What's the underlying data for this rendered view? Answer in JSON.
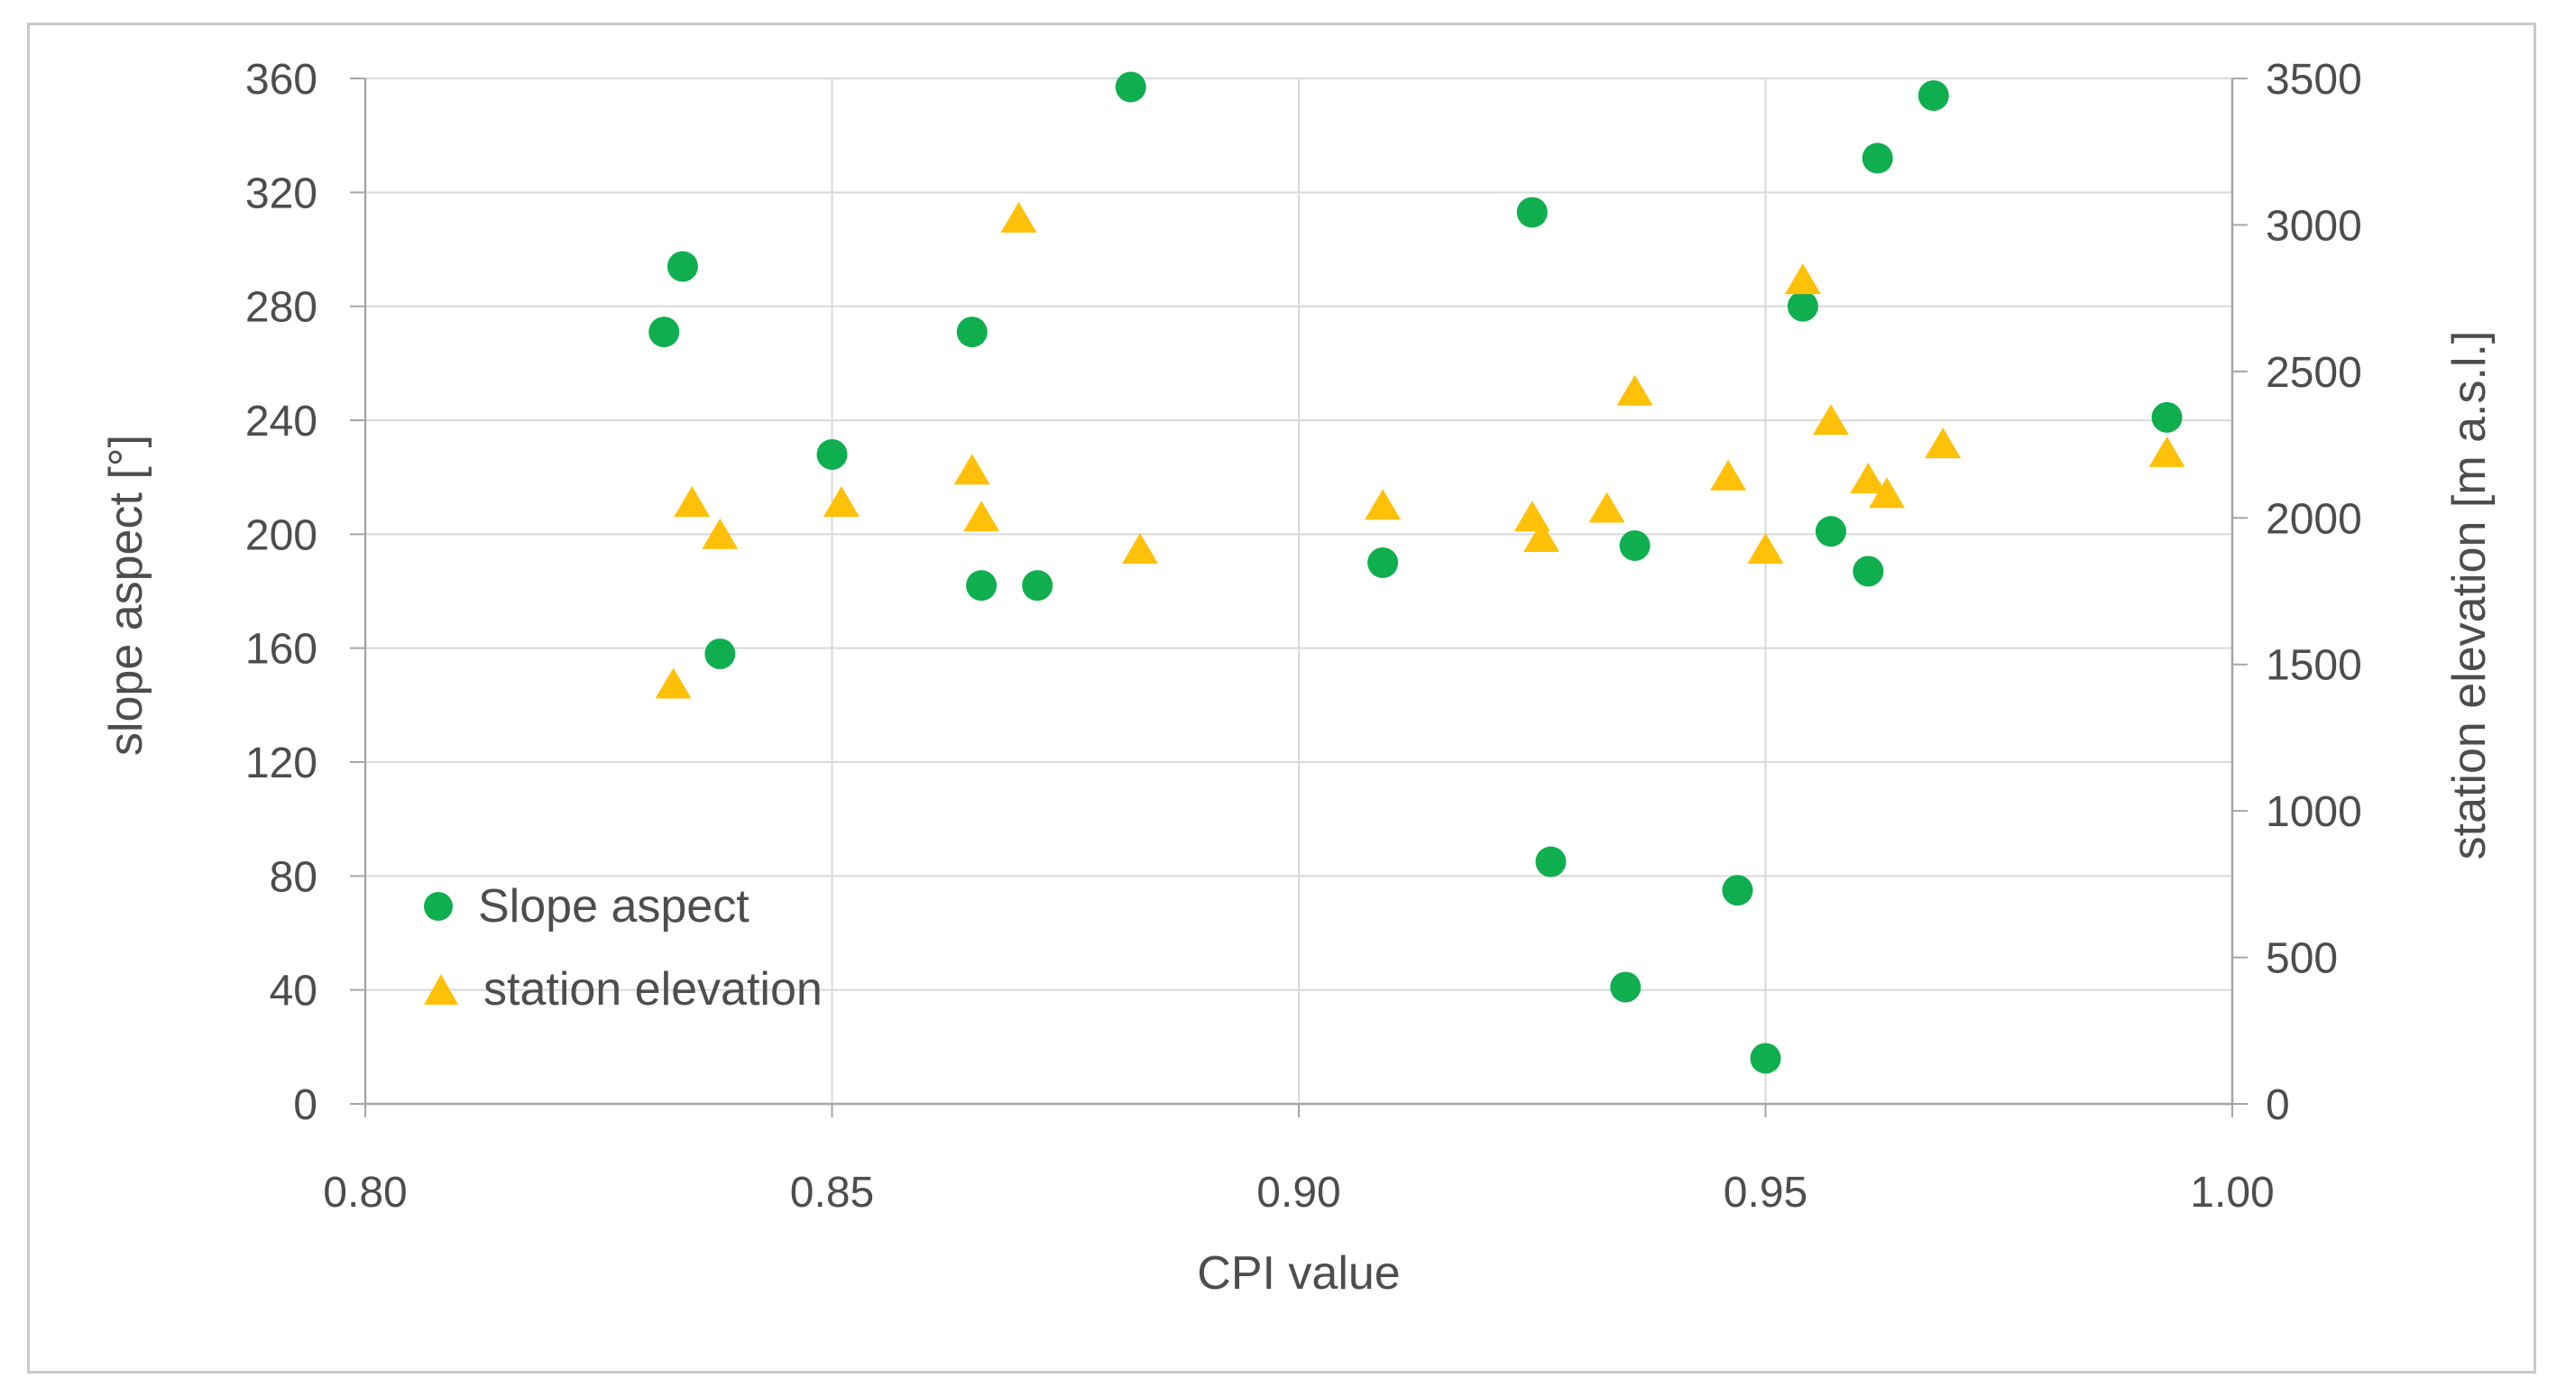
{
  "figure": {
    "background": "#ffffff",
    "border_color": "#c9c9c9"
  },
  "colors": {
    "green_series": "#0fae4e",
    "yellow_series": "#ffc008",
    "gridline": "#d9d9d9",
    "axis_line": "#a6a6a6",
    "text": "#4d4d4d"
  },
  "chart_data": {
    "type": "scatter",
    "title": "",
    "xlabel": "CPI value",
    "xlim": [
      0.8,
      1.0
    ],
    "x_ticks": [
      {
        "v": 0.8,
        "label": "0.80"
      },
      {
        "v": 0.85,
        "label": "0.85"
      },
      {
        "v": 0.9,
        "label": "0.90"
      },
      {
        "v": 0.95,
        "label": "0.95"
      },
      {
        "v": 1.0,
        "label": "1.00"
      }
    ],
    "x_gridlines": [
      0.85,
      0.9,
      0.95
    ],
    "grid": true,
    "left_axis": {
      "label": "slope aspect [°]",
      "lim": [
        0,
        360
      ],
      "ticks": [
        0,
        40,
        80,
        120,
        160,
        200,
        240,
        280,
        320,
        360
      ]
    },
    "right_axis": {
      "label": "station elevation [m a.s.l.]",
      "lim": [
        0,
        3500
      ],
      "ticks": [
        0,
        500,
        1000,
        1500,
        2000,
        2500,
        3000,
        3500
      ]
    },
    "legend": {
      "position": "inside-lower-left",
      "items": [
        {
          "label": "Slope aspect",
          "marker": "circle",
          "color": "#0fae4e"
        },
        {
          "label": "station elevation",
          "marker": "triangle",
          "color": "#ffc008"
        }
      ]
    },
    "series": [
      {
        "name": "Slope aspect",
        "axis": "left",
        "marker": "circle",
        "color": "#0fae4e",
        "points": [
          [
            0.832,
            271
          ],
          [
            0.834,
            294
          ],
          [
            0.838,
            158
          ],
          [
            0.85,
            228
          ],
          [
            0.865,
            271
          ],
          [
            0.866,
            182
          ],
          [
            0.872,
            182
          ],
          [
            0.882,
            357
          ],
          [
            0.909,
            190
          ],
          [
            0.925,
            313
          ],
          [
            0.927,
            85
          ],
          [
            0.935,
            41
          ],
          [
            0.936,
            196
          ],
          [
            0.947,
            75
          ],
          [
            0.95,
            16
          ],
          [
            0.954,
            280
          ],
          [
            0.957,
            201
          ],
          [
            0.961,
            187
          ],
          [
            0.962,
            332
          ],
          [
            0.968,
            354
          ],
          [
            0.993,
            241
          ]
        ]
      },
      {
        "name": "station elevation",
        "axis": "right",
        "marker": "triangle",
        "color": "#ffc008",
        "points": [
          [
            0.833,
            1430
          ],
          [
            0.835,
            2050
          ],
          [
            0.838,
            1940
          ],
          [
            0.851,
            2050
          ],
          [
            0.865,
            2160
          ],
          [
            0.866,
            2000
          ],
          [
            0.87,
            3020
          ],
          [
            0.883,
            1890
          ],
          [
            0.909,
            2040
          ],
          [
            0.925,
            2000
          ],
          [
            0.926,
            1930
          ],
          [
            0.933,
            2030
          ],
          [
            0.936,
            2430
          ],
          [
            0.946,
            2140
          ],
          [
            0.95,
            1890
          ],
          [
            0.954,
            2810
          ],
          [
            0.957,
            2330
          ],
          [
            0.961,
            2130
          ],
          [
            0.963,
            2080
          ],
          [
            0.969,
            2250
          ],
          [
            0.993,
            2220
          ]
        ]
      }
    ]
  }
}
